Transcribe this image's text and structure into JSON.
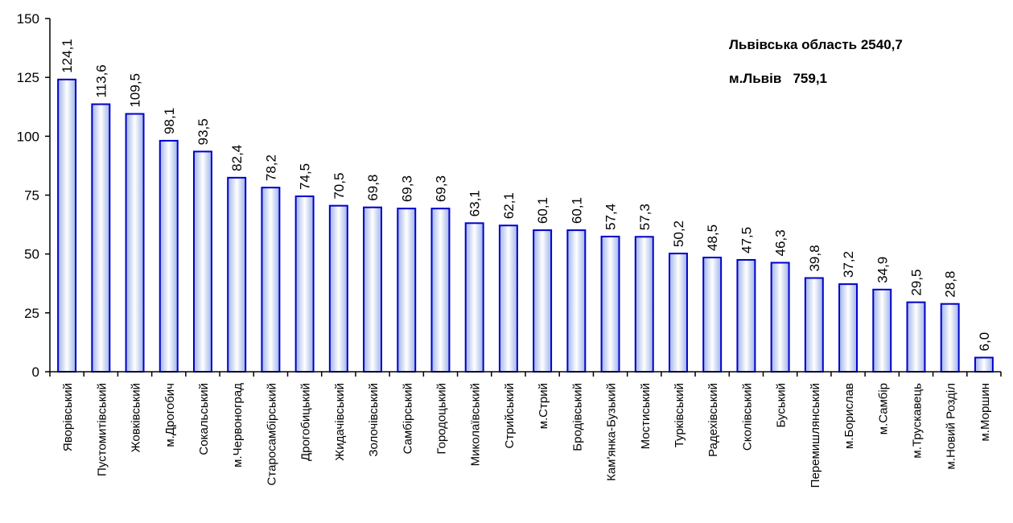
{
  "chart_data": {
    "type": "bar",
    "categories": [
      "Яворівський",
      "Пустомитівський",
      "Жовківський",
      "м.Дрогобич",
      "Сокальський",
      "м.Червоноград",
      "Старосамбірський",
      "Дрогобицький",
      "Жидачівський",
      "Золочівський",
      "Самбірський",
      "Городоцький",
      "Миколаївський",
      "Стрийський",
      "м.Стрий",
      "Бродівський",
      "Кам'янка-Бузький",
      "Мостиський",
      "Турківський",
      "Радехівський",
      "Сколівський",
      "Буський",
      "Перемишлянський",
      "м.Борислав",
      "м.Самбір",
      "м.Трускавець",
      "м.Новий Розділ",
      "м.Моршин"
    ],
    "values": [
      124.1,
      113.6,
      109.5,
      98.1,
      93.5,
      82.4,
      78.2,
      74.5,
      70.5,
      69.8,
      69.3,
      69.3,
      63.1,
      62.1,
      60.1,
      60.1,
      57.4,
      57.3,
      50.2,
      48.5,
      47.5,
      46.3,
      39.8,
      37.2,
      34.9,
      29.5,
      28.8,
      6.0
    ],
    "value_labels": [
      "124,1",
      "113,6",
      "109,5",
      "98,1",
      "93,5",
      "82,4",
      "78,2",
      "74,5",
      "70,5",
      "69,8",
      "69,3",
      "69,3",
      "63,1",
      "62,1",
      "60,1",
      "60,1",
      "57,4",
      "57,3",
      "50,2",
      "48,5",
      "47,5",
      "46,3",
      "39,8",
      "37,2",
      "34,9",
      "29,5",
      "28,8",
      "6,0"
    ],
    "yticks": [
      0,
      25,
      50,
      75,
      100,
      125,
      150
    ],
    "ylim": [
      0,
      150
    ],
    "title": "",
    "xlabel": "",
    "ylabel": "",
    "grid": false,
    "colors": {
      "bar_edge": "#0000cc",
      "bar_fill_center": "#ffffff",
      "bar_fill_edge": "#9fb3e8",
      "axis": "#000000"
    }
  },
  "annotations": {
    "region_total": "Львівська область 2540,7",
    "city_total": "м.Львів   759,1"
  }
}
